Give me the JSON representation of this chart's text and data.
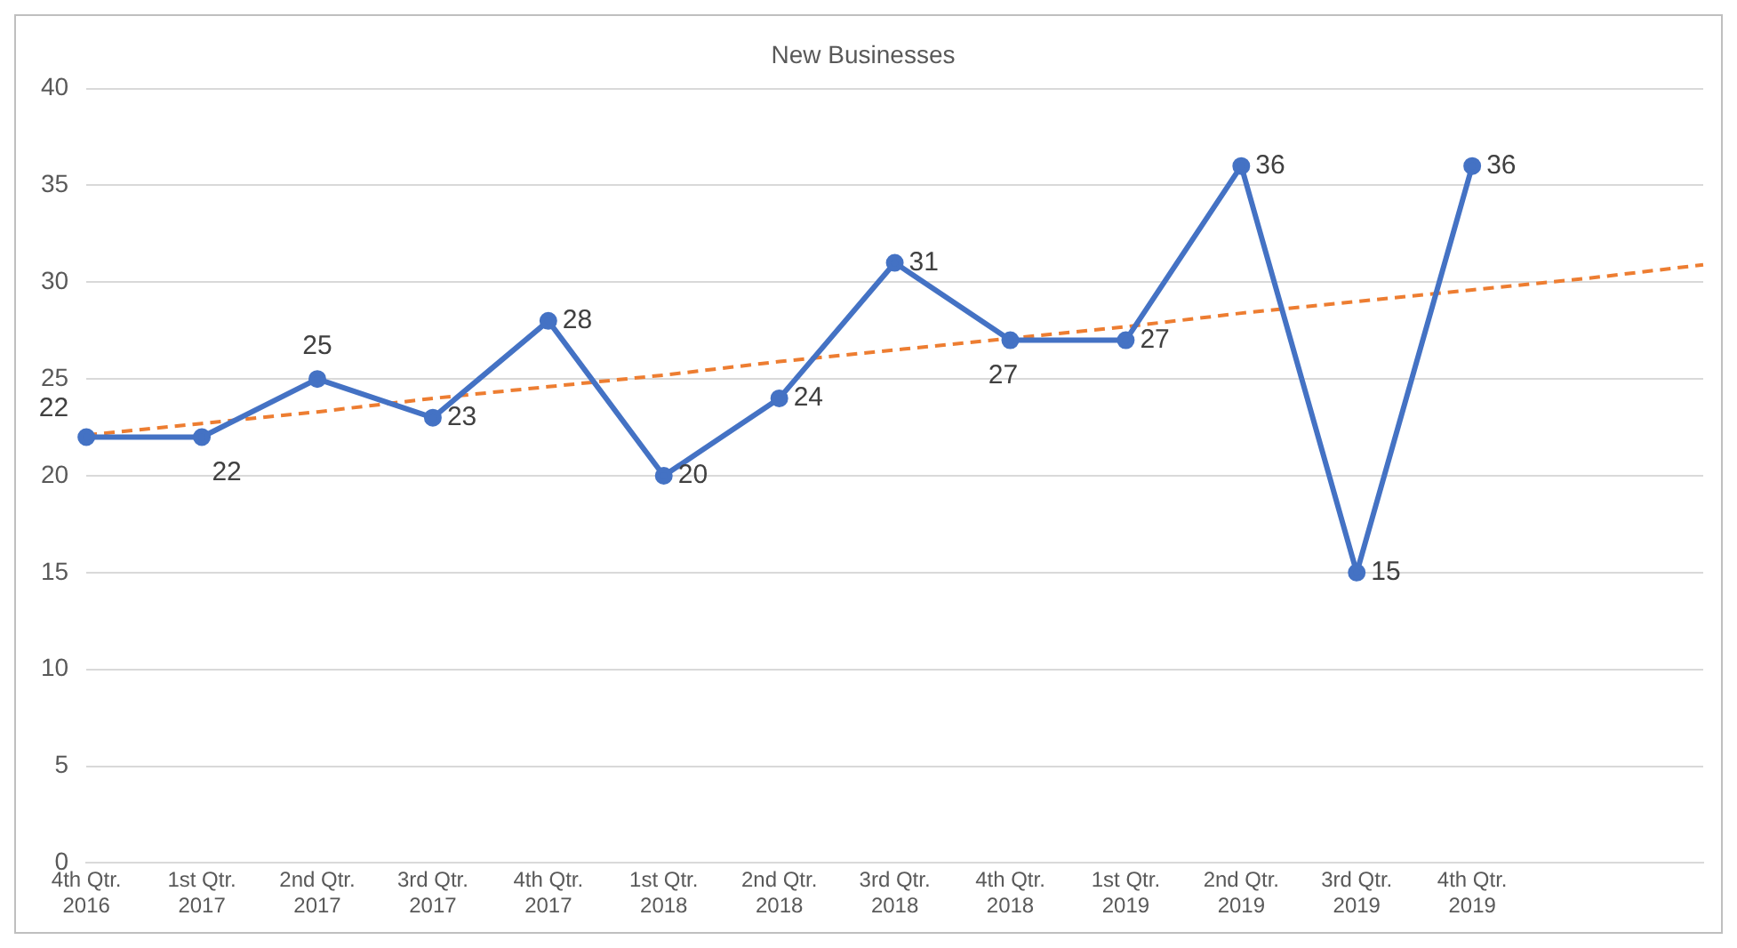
{
  "chart_data": {
    "type": "line",
    "title": "New Businesses",
    "categories": [
      "4th Qtr. 2016",
      "1st Qtr. 2017",
      "2nd Qtr. 2017",
      "3rd Qtr. 2017",
      "4th Qtr. 2017",
      "1st Qtr. 2018",
      "2nd Qtr. 2018",
      "3rd Qtr. 2018",
      "4th Qtr. 2018",
      "1st Qtr. 2019",
      "2nd Qtr. 2019",
      "3rd Qtr. 2019",
      "4th Qtr. 2019",
      null,
      null
    ],
    "series": [
      {
        "color": "#4472c4",
        "marker": "circle",
        "line_style": "solid",
        "values": [
          22,
          22,
          25,
          23,
          28,
          20,
          24,
          31,
          27,
          27,
          36,
          15,
          36,
          null,
          null
        ],
        "value_labels": [
          "22",
          "22",
          "25",
          "23",
          "28",
          "20",
          "24",
          "31",
          "27",
          "27",
          "36",
          "15",
          "36",
          null,
          null
        ]
      },
      {
        "color": "#ed7d31",
        "marker": "none",
        "line_style": "dashed",
        "values": [
          22.1,
          22.7,
          23.3,
          24.0,
          24.6,
          25.2,
          25.9,
          26.5,
          27.1,
          27.7,
          28.4,
          29.0,
          29.6,
          30.2,
          30.9
        ]
      }
    ],
    "ylim": [
      0,
      40
    ],
    "yticks": [
      0,
      5,
      10,
      15,
      20,
      25,
      30,
      35,
      40
    ],
    "grid": "y",
    "legend": false
  }
}
